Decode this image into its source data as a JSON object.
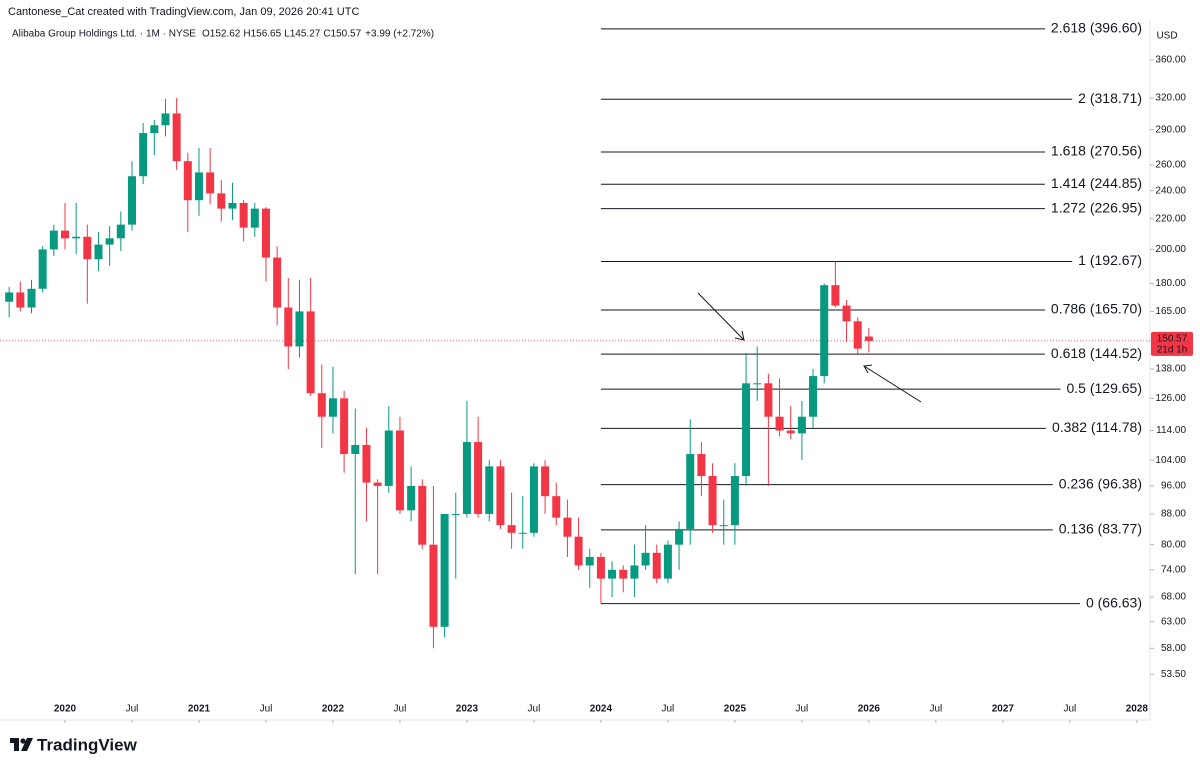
{
  "chart_data": {
    "type": "candlestick",
    "header": "Cantonese_Cat created with TradingView.com, Jan 09, 2026 20:41 UTC",
    "title": "Alibaba Group Holdings Ltd. · 1M · NYSE",
    "ohlc_labels": [
      "O152.62",
      "H156.65",
      "L145.27",
      "C150.57"
    ],
    "change_label": "+3.99 (+2.72%)",
    "currency": "USD",
    "brand": "TradingView",
    "log_scale": true,
    "up_color": "#089981",
    "down_color": "#f23645",
    "x": [
      "2019-08",
      "2019-09",
      "2019-10",
      "2019-11",
      "2019-12",
      "2020-01",
      "2020-02",
      "2020-03",
      "2020-04",
      "2020-05",
      "2020-06",
      "2020-07",
      "2020-08",
      "2020-09",
      "2020-10",
      "2020-11",
      "2020-12",
      "2021-01",
      "2021-02",
      "2021-03",
      "2021-04",
      "2021-05",
      "2021-06",
      "2021-07",
      "2021-08",
      "2021-09",
      "2021-10",
      "2021-11",
      "2021-12",
      "2022-01",
      "2022-02",
      "2022-03",
      "2022-04",
      "2022-05",
      "2022-06",
      "2022-07",
      "2022-08",
      "2022-09",
      "2022-10",
      "2022-11",
      "2022-12",
      "2023-01",
      "2023-02",
      "2023-03",
      "2023-04",
      "2023-05",
      "2023-06",
      "2023-07",
      "2023-08",
      "2023-09",
      "2023-10",
      "2023-11",
      "2023-12",
      "2024-01",
      "2024-02",
      "2024-03",
      "2024-04",
      "2024-05",
      "2024-06",
      "2024-07",
      "2024-08",
      "2024-09",
      "2024-10",
      "2024-11",
      "2024-12",
      "2025-01",
      "2025-02",
      "2025-03",
      "2025-04",
      "2025-05",
      "2025-06",
      "2025-07",
      "2025-08",
      "2025-09",
      "2025-10",
      "2025-11",
      "2025-12",
      "2026-01"
    ],
    "open": [
      170,
      175,
      167,
      177,
      200,
      212,
      207,
      208,
      194,
      203,
      207,
      216,
      251,
      287,
      294,
      305,
      263,
      233,
      254,
      238,
      227,
      231,
      214,
      227,
      195,
      167,
      148,
      165,
      128,
      119,
      126,
      106,
      109,
      97,
      96,
      114,
      89,
      96,
      80,
      62,
      88,
      88,
      110,
      88,
      102,
      85,
      83,
      83,
      102,
      93,
      87,
      82,
      75,
      77,
      72,
      74,
      72,
      75,
      78,
      72,
      80,
      84,
      106,
      99,
      85,
      85,
      99,
      132,
      132,
      119,
      114,
      113,
      119,
      135,
      179,
      168,
      160,
      152.62
    ],
    "high": [
      178,
      181,
      182,
      202,
      216,
      231,
      231,
      216,
      211,
      215,
      225,
      263,
      296,
      299,
      319,
      320,
      270,
      274,
      274,
      248,
      246,
      233,
      231,
      228,
      202,
      183,
      182,
      183,
      140,
      139,
      129,
      122,
      115,
      98,
      123,
      119,
      102,
      98,
      96,
      88,
      94,
      125,
      119,
      104,
      104,
      94,
      93,
      103,
      104,
      97,
      92,
      87,
      79,
      78,
      76,
      75,
      80,
      85,
      80,
      81,
      86,
      118,
      110,
      103,
      92,
      103,
      145,
      148,
      136,
      134,
      123,
      125,
      138,
      180,
      192.67,
      171,
      162,
      156.65
    ],
    "low": [
      162,
      165,
      164,
      175,
      196,
      200,
      197,
      169,
      187,
      190,
      199,
      212,
      245,
      268,
      284,
      256,
      211,
      222,
      230,
      218,
      219,
      205,
      208,
      181,
      158,
      138,
      143,
      127,
      108,
      113,
      100,
      73,
      86,
      73,
      94,
      88,
      86,
      79,
      58,
      60,
      72,
      87,
      87,
      86,
      84,
      79,
      79,
      82,
      88,
      85,
      77,
      74,
      70,
      66.63,
      68,
      69,
      68,
      74,
      71,
      71,
      74,
      80,
      93,
      83,
      80,
      80,
      96,
      125,
      96,
      112,
      111,
      104,
      115,
      132,
      167,
      150,
      144,
      145.27
    ],
    "close": [
      175,
      167,
      177,
      200,
      212,
      207,
      208,
      194,
      203,
      207,
      216,
      251,
      287,
      294,
      305,
      263,
      233,
      254,
      238,
      227,
      231,
      214,
      227,
      195,
      167,
      148,
      165,
      128,
      119,
      126,
      106,
      109,
      97,
      96,
      114,
      89,
      96,
      80,
      62,
      88,
      88,
      110,
      88,
      102,
      85,
      83,
      83,
      102,
      93,
      87,
      82,
      75,
      77,
      72,
      74,
      72,
      75,
      78,
      72,
      80,
      84,
      106,
      99,
      85,
      85,
      99,
      132,
      132,
      119,
      114,
      113,
      119,
      135,
      179,
      168,
      160,
      147,
      150.57
    ],
    "xlim": [
      "2019-07",
      "2028-02"
    ],
    "xticks": [
      {
        "value": "2020-01",
        "label": "2020"
      },
      {
        "value": "2020-07",
        "label": "Jul"
      },
      {
        "value": "2021-01",
        "label": "2021"
      },
      {
        "value": "2021-07",
        "label": "Jul"
      },
      {
        "value": "2022-01",
        "label": "2022"
      },
      {
        "value": "2022-07",
        "label": "Jul"
      },
      {
        "value": "2023-01",
        "label": "2023"
      },
      {
        "value": "2023-07",
        "label": "Jul"
      },
      {
        "value": "2024-01",
        "label": "2024"
      },
      {
        "value": "2024-07",
        "label": "Jul"
      },
      {
        "value": "2025-01",
        "label": "2025"
      },
      {
        "value": "2025-07",
        "label": "Jul"
      },
      {
        "value": "2026-01",
        "label": "2026"
      },
      {
        "value": "2026-07",
        "label": "Jul"
      },
      {
        "value": "2027-01",
        "label": "2027"
      },
      {
        "value": "2027-07",
        "label": "Jul"
      },
      {
        "value": "2028-01",
        "label": "2028"
      }
    ],
    "ylim": [
      49.4,
      407.6
    ],
    "yticks": [
      {
        "value": 360,
        "label": "360.00"
      },
      {
        "value": 320,
        "label": "320.00"
      },
      {
        "value": 290,
        "label": "290.00"
      },
      {
        "value": 260,
        "label": "260.00"
      },
      {
        "value": 240,
        "label": "240.00"
      },
      {
        "value": 220,
        "label": "220.00"
      },
      {
        "value": 200,
        "label": "200.00"
      },
      {
        "value": 180,
        "label": "180.00"
      },
      {
        "value": 165,
        "label": "165.00"
      },
      {
        "value": 138,
        "label": "138.00"
      },
      {
        "value": 126,
        "label": "126.00"
      },
      {
        "value": 114,
        "label": "114.00"
      },
      {
        "value": 104,
        "label": "104.00"
      },
      {
        "value": 96,
        "label": "96.00"
      },
      {
        "value": 88,
        "label": "88.00"
      },
      {
        "value": 80,
        "label": "80.00"
      },
      {
        "value": 74,
        "label": "74.00"
      },
      {
        "value": 68,
        "label": "68.00"
      },
      {
        "value": 63,
        "label": "63.00"
      },
      {
        "value": 58,
        "label": "58.00"
      },
      {
        "value": 53.5,
        "label": "53.50"
      }
    ],
    "fib_start": "2024-01",
    "fib_levels": [
      {
        "value": 396.6,
        "label": "2.618 (396.60)"
      },
      {
        "value": 318.71,
        "label": "2 (318.71)"
      },
      {
        "value": 270.56,
        "label": "1.618 (270.56)"
      },
      {
        "value": 244.85,
        "label": "1.414 (244.85)"
      },
      {
        "value": 226.95,
        "label": "1.272 (226.95)"
      },
      {
        "value": 192.67,
        "label": "1 (192.67)"
      },
      {
        "value": 165.7,
        "label": "0.786 (165.70)"
      },
      {
        "value": 144.52,
        "label": "0.618 (144.52)"
      },
      {
        "value": 129.65,
        "label": "0.5 (129.65)"
      },
      {
        "value": 114.78,
        "label": "0.382 (114.78)"
      },
      {
        "value": 96.38,
        "label": "0.236 (96.38)"
      },
      {
        "value": 83.77,
        "label": "0.136 (83.77)"
      },
      {
        "value": 66.63,
        "label": "0 (66.63)"
      }
    ],
    "last_price": {
      "value": 150.57,
      "label": "150.57"
    },
    "countdown": "21d 1h"
  }
}
